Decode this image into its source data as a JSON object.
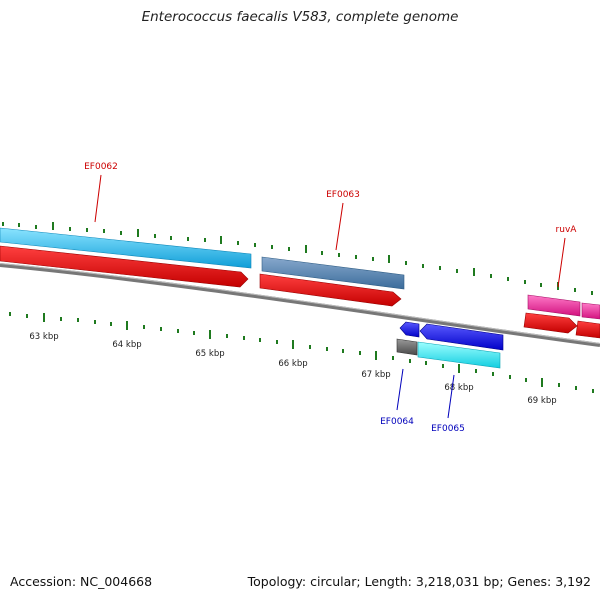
{
  "title": "Enterococcus faecalis V583, complete genome",
  "footer": {
    "accession": "Accession: NC_004668",
    "summary": "Topology: circular; Length: 3,218,031 bp; Genes: 3,192"
  },
  "ticks": [
    "63 kbp",
    "64 kbp",
    "65 kbp",
    "66 kbp",
    "67 kbp",
    "68 kbp",
    "69 kbp"
  ],
  "gene_labels": {
    "ef0062": "EF0062",
    "ef0063": "EF0063",
    "ruva": "ruvA",
    "ef0064": "EF0064",
    "ef0065": "EF0065"
  },
  "colors": {
    "forward_label": "#cc0000",
    "reverse_label": "#0000bb",
    "tick": "#1f7a1f",
    "backbone": "#777777",
    "cds_red": "#ee0000",
    "ef0062": "#18b4ee",
    "ef0063": "#4a7fae",
    "ruva": "#ee2299",
    "ef0064": "#1a1aee",
    "ef0065": "#22e6f0",
    "gray_feature": "#666666"
  }
}
